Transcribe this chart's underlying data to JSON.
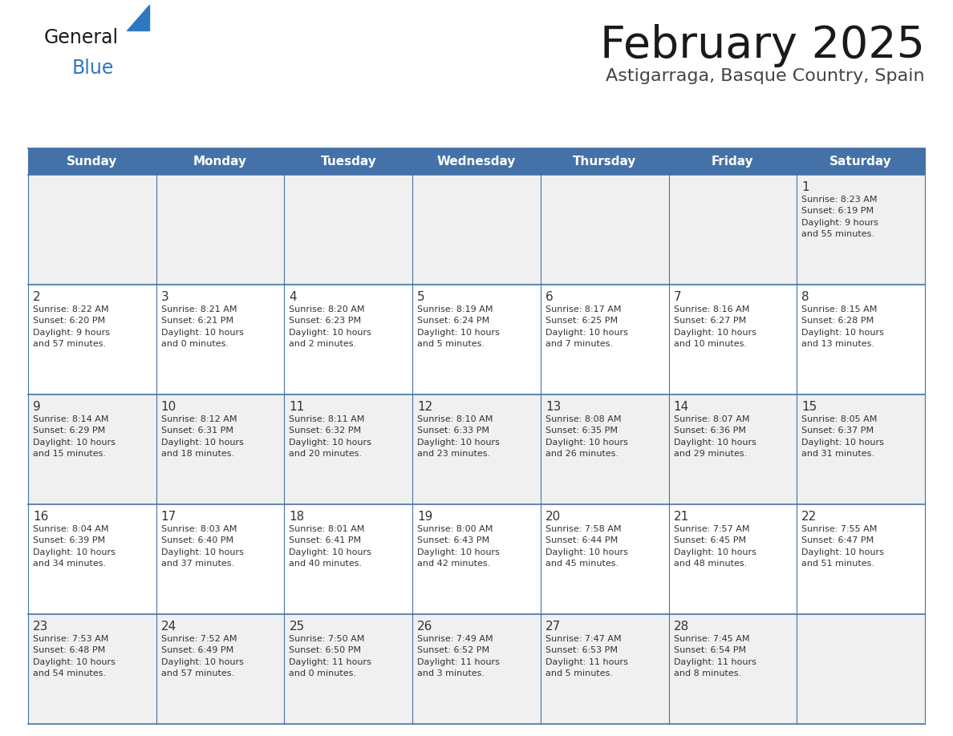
{
  "title": "February 2025",
  "subtitle": "Astigarraga, Basque Country, Spain",
  "days_of_week": [
    "Sunday",
    "Monday",
    "Tuesday",
    "Wednesday",
    "Thursday",
    "Friday",
    "Saturday"
  ],
  "header_bg": "#4472a8",
  "header_text": "#ffffff",
  "row_bg_odd": "#f0f0f0",
  "row_bg_even": "#ffffff",
  "cell_text_color": "#333333",
  "day_num_color": "#333333",
  "border_color": "#4472a8",
  "title_color": "#1a1a1a",
  "subtitle_color": "#444444",
  "general_text_color": "#1a1a1a",
  "blue_color": "#2e78c1",
  "calendar": [
    [
      {
        "day": "",
        "info": ""
      },
      {
        "day": "",
        "info": ""
      },
      {
        "day": "",
        "info": ""
      },
      {
        "day": "",
        "info": ""
      },
      {
        "day": "",
        "info": ""
      },
      {
        "day": "",
        "info": ""
      },
      {
        "day": "1",
        "info": "Sunrise: 8:23 AM\nSunset: 6:19 PM\nDaylight: 9 hours\nand 55 minutes."
      }
    ],
    [
      {
        "day": "2",
        "info": "Sunrise: 8:22 AM\nSunset: 6:20 PM\nDaylight: 9 hours\nand 57 minutes."
      },
      {
        "day": "3",
        "info": "Sunrise: 8:21 AM\nSunset: 6:21 PM\nDaylight: 10 hours\nand 0 minutes."
      },
      {
        "day": "4",
        "info": "Sunrise: 8:20 AM\nSunset: 6:23 PM\nDaylight: 10 hours\nand 2 minutes."
      },
      {
        "day": "5",
        "info": "Sunrise: 8:19 AM\nSunset: 6:24 PM\nDaylight: 10 hours\nand 5 minutes."
      },
      {
        "day": "6",
        "info": "Sunrise: 8:17 AM\nSunset: 6:25 PM\nDaylight: 10 hours\nand 7 minutes."
      },
      {
        "day": "7",
        "info": "Sunrise: 8:16 AM\nSunset: 6:27 PM\nDaylight: 10 hours\nand 10 minutes."
      },
      {
        "day": "8",
        "info": "Sunrise: 8:15 AM\nSunset: 6:28 PM\nDaylight: 10 hours\nand 13 minutes."
      }
    ],
    [
      {
        "day": "9",
        "info": "Sunrise: 8:14 AM\nSunset: 6:29 PM\nDaylight: 10 hours\nand 15 minutes."
      },
      {
        "day": "10",
        "info": "Sunrise: 8:12 AM\nSunset: 6:31 PM\nDaylight: 10 hours\nand 18 minutes."
      },
      {
        "day": "11",
        "info": "Sunrise: 8:11 AM\nSunset: 6:32 PM\nDaylight: 10 hours\nand 20 minutes."
      },
      {
        "day": "12",
        "info": "Sunrise: 8:10 AM\nSunset: 6:33 PM\nDaylight: 10 hours\nand 23 minutes."
      },
      {
        "day": "13",
        "info": "Sunrise: 8:08 AM\nSunset: 6:35 PM\nDaylight: 10 hours\nand 26 minutes."
      },
      {
        "day": "14",
        "info": "Sunrise: 8:07 AM\nSunset: 6:36 PM\nDaylight: 10 hours\nand 29 minutes."
      },
      {
        "day": "15",
        "info": "Sunrise: 8:05 AM\nSunset: 6:37 PM\nDaylight: 10 hours\nand 31 minutes."
      }
    ],
    [
      {
        "day": "16",
        "info": "Sunrise: 8:04 AM\nSunset: 6:39 PM\nDaylight: 10 hours\nand 34 minutes."
      },
      {
        "day": "17",
        "info": "Sunrise: 8:03 AM\nSunset: 6:40 PM\nDaylight: 10 hours\nand 37 minutes."
      },
      {
        "day": "18",
        "info": "Sunrise: 8:01 AM\nSunset: 6:41 PM\nDaylight: 10 hours\nand 40 minutes."
      },
      {
        "day": "19",
        "info": "Sunrise: 8:00 AM\nSunset: 6:43 PM\nDaylight: 10 hours\nand 42 minutes."
      },
      {
        "day": "20",
        "info": "Sunrise: 7:58 AM\nSunset: 6:44 PM\nDaylight: 10 hours\nand 45 minutes."
      },
      {
        "day": "21",
        "info": "Sunrise: 7:57 AM\nSunset: 6:45 PM\nDaylight: 10 hours\nand 48 minutes."
      },
      {
        "day": "22",
        "info": "Sunrise: 7:55 AM\nSunset: 6:47 PM\nDaylight: 10 hours\nand 51 minutes."
      }
    ],
    [
      {
        "day": "23",
        "info": "Sunrise: 7:53 AM\nSunset: 6:48 PM\nDaylight: 10 hours\nand 54 minutes."
      },
      {
        "day": "24",
        "info": "Sunrise: 7:52 AM\nSunset: 6:49 PM\nDaylight: 10 hours\nand 57 minutes."
      },
      {
        "day": "25",
        "info": "Sunrise: 7:50 AM\nSunset: 6:50 PM\nDaylight: 11 hours\nand 0 minutes."
      },
      {
        "day": "26",
        "info": "Sunrise: 7:49 AM\nSunset: 6:52 PM\nDaylight: 11 hours\nand 3 minutes."
      },
      {
        "day": "27",
        "info": "Sunrise: 7:47 AM\nSunset: 6:53 PM\nDaylight: 11 hours\nand 5 minutes."
      },
      {
        "day": "28",
        "info": "Sunrise: 7:45 AM\nSunset: 6:54 PM\nDaylight: 11 hours\nand 8 minutes."
      },
      {
        "day": "",
        "info": ""
      }
    ]
  ]
}
